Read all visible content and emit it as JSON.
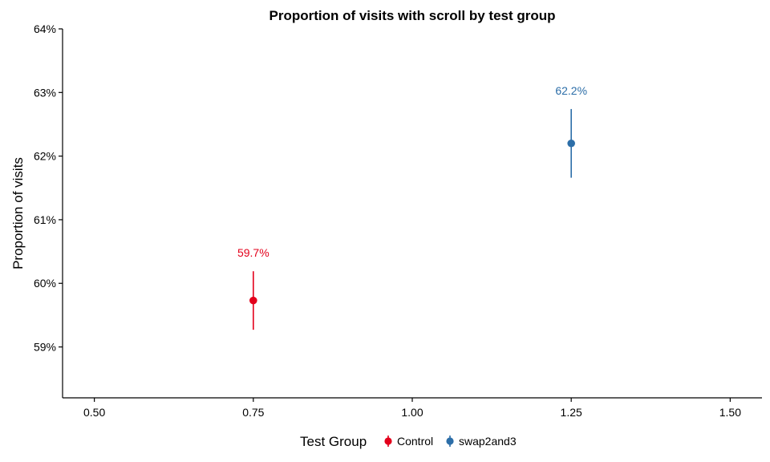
{
  "chart_data": {
    "type": "scatter",
    "title": "Proportion of visits with scroll by test group",
    "xlabel": "",
    "ylabel": "Proportion of visits",
    "xlim": [
      0.45,
      1.55
    ],
    "ylim": [
      58.2,
      64.0
    ],
    "x_ticks": [
      0.5,
      0.75,
      1.0,
      1.25,
      1.5
    ],
    "x_tick_labels": [
      "0.50",
      "0.75",
      "1.00",
      "1.25",
      "1.50"
    ],
    "y_ticks": [
      59,
      60,
      61,
      62,
      63,
      64
    ],
    "y_tick_labels": [
      "59%",
      "60%",
      "61%",
      "62%",
      "63%",
      "64%"
    ],
    "grid": false,
    "legend": {
      "title": "Test Group",
      "placement": "bottom",
      "entries": [
        "Control",
        "swap2and3"
      ]
    },
    "series": [
      {
        "name": "Control",
        "color": "#e3001b",
        "x": 0.75,
        "y": 59.73,
        "ymin": 59.27,
        "ymax": 60.19,
        "label": "59.7%"
      },
      {
        "name": "swap2and3",
        "color": "#2c6ea8",
        "x": 1.25,
        "y": 62.2,
        "ymin": 61.66,
        "ymax": 62.74,
        "label": "62.2%"
      }
    ]
  }
}
